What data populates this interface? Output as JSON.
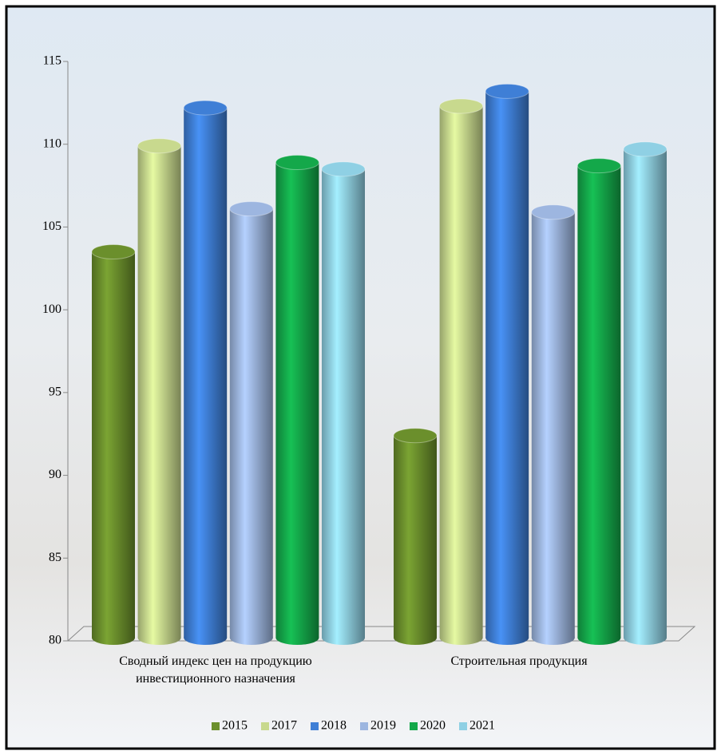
{
  "chart_data": {
    "type": "bar3d",
    "categories": [
      "Сводный индекс цен на продукцию инвестиционного назначения",
      "Строительная продукция"
    ],
    "series": [
      {
        "name": "2015",
        "color": "#6b8f2c",
        "values": [
          103.5,
          92.4
        ]
      },
      {
        "name": "2017",
        "color": "#c8d98e",
        "values": [
          109.9,
          112.3
        ]
      },
      {
        "name": "2018",
        "color": "#3f7fd6",
        "values": [
          112.2,
          113.2
        ]
      },
      {
        "name": "2019",
        "color": "#9db6e0",
        "values": [
          106.1,
          105.9
        ]
      },
      {
        "name": "2020",
        "color": "#14a84a",
        "values": [
          108.9,
          108.7
        ]
      },
      {
        "name": "2021",
        "color": "#8fd0e4",
        "values": [
          108.5,
          109.7
        ]
      }
    ],
    "ylim": [
      80,
      115
    ],
    "yticks": [
      80,
      85,
      90,
      95,
      100,
      105,
      110,
      115
    ],
    "legend": "bottom"
  }
}
